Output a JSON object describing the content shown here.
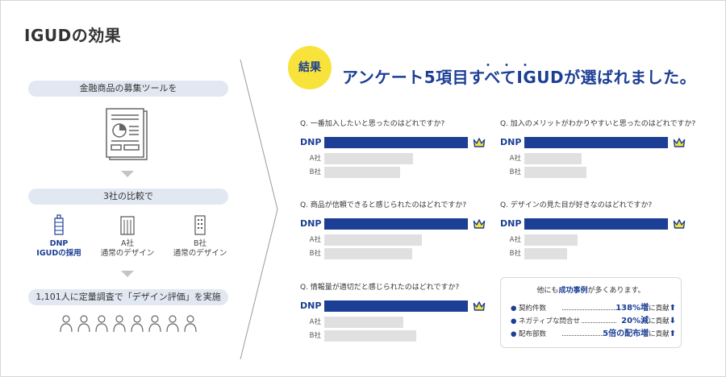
{
  "page_title": "IGUDの効果",
  "left": {
    "step1": "金融商品の募集ツールを",
    "step2": "3社の比較で",
    "companies": [
      {
        "line1": "DNP",
        "line2": "IGUDの採用"
      },
      {
        "line1": "A社",
        "line2": "通常のデザイン"
      },
      {
        "line1": "B社",
        "line2": "通常のデザイン"
      }
    ],
    "step3": "1,101人に定量調査で「デザイン評価」を実施"
  },
  "result": {
    "badge": "結果",
    "headline": "アンケート5項目すべてIGUDが選ばれました。",
    "emphasis_dots": "・・・"
  },
  "colors": {
    "brand": "#1c3f95",
    "accent": "#f8e33a",
    "bar_gray": "#e0e0e0",
    "pill_bg": "#e2e8f2"
  },
  "chart_data": [
    {
      "type": "bar",
      "title": "Q. 一番加入したいと思ったのはどれですか?",
      "categories": [
        "DNP",
        "A社",
        "B社"
      ],
      "values": [
        100,
        62,
        53
      ],
      "winner_icon": "crown-icon"
    },
    {
      "type": "bar",
      "title": "Q. 加入のメリットがわかりやすいと思ったのはどれですか?",
      "categories": [
        "DNP",
        "A社",
        "B社"
      ],
      "values": [
        100,
        40,
        43
      ],
      "winner_icon": "crown-icon"
    },
    {
      "type": "bar",
      "title": "Q. 商品が信頼できると感じられたのはどれですか?",
      "categories": [
        "DNP",
        "A社",
        "B社"
      ],
      "values": [
        100,
        68,
        61
      ],
      "winner_icon": "crown-icon"
    },
    {
      "type": "bar",
      "title": "Q. デザインの見た目が好きなのはどれですか?",
      "categories": [
        "DNP",
        "A社",
        "B社"
      ],
      "values": [
        100,
        37,
        30
      ],
      "winner_icon": "crown-icon"
    },
    {
      "type": "bar",
      "title": "Q. 情報量が適切だと感じられたのはどれですか?",
      "categories": [
        "DNP",
        "A社",
        "B社"
      ],
      "values": [
        100,
        55,
        64
      ],
      "winner_icon": "crown-icon"
    }
  ],
  "others": {
    "title_pre": "他にも",
    "title_hl": "成功事例",
    "title_post": "が多くあります。",
    "rows": [
      {
        "name": "契約件数",
        "value": "138%増",
        "suffix": "に貢献",
        "arrow": "⬆"
      },
      {
        "name": "ネガティブな問合せ",
        "value": "20%減",
        "suffix": "に貢献",
        "arrow": "⬇"
      },
      {
        "name": "配布部数",
        "value": "5倍の配布増",
        "suffix": "に貢献",
        "arrow": "⬆"
      }
    ]
  }
}
